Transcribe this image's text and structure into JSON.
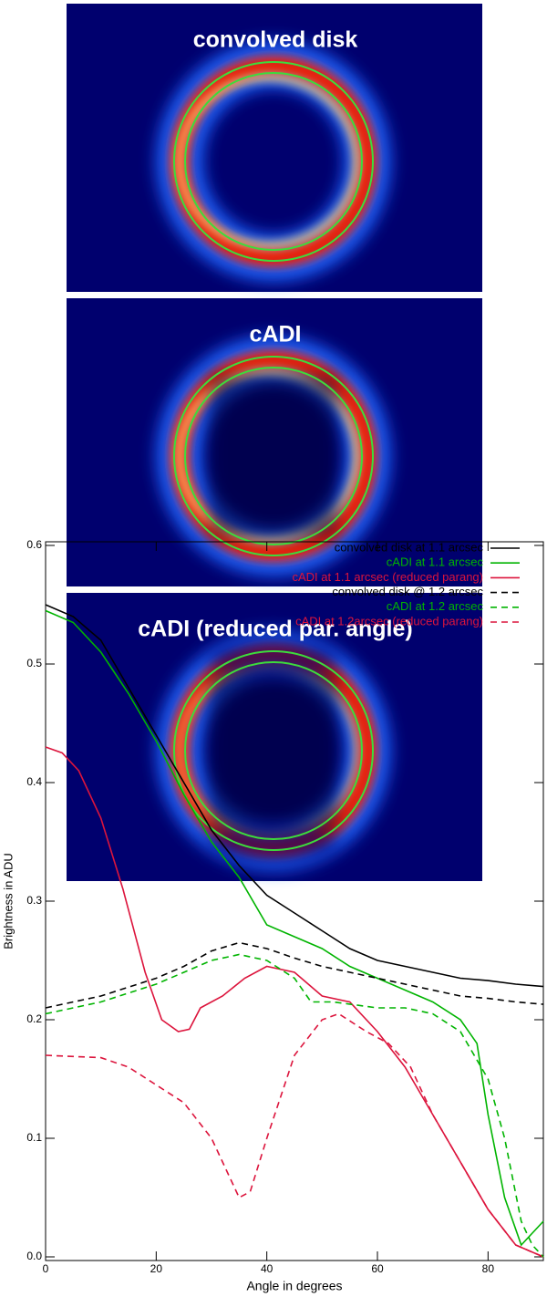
{
  "panels": [
    {
      "title": "convolved disk"
    },
    {
      "title": "cADI"
    },
    {
      "title": "cADI (reduced par. angle)"
    }
  ],
  "chart_data": {
    "type": "line",
    "xlabel": "Angle in degrees",
    "ylabel": "Brightness in ADU",
    "xlim": [
      0,
      90
    ],
    "ylim": [
      0,
      0.6
    ],
    "xticks": [
      0,
      20,
      40,
      60,
      80
    ],
    "yticks": [
      {
        "value": 0,
        "label": "0.0"
      },
      0.1,
      0.2,
      0.3,
      0.4,
      0.5,
      0.6
    ],
    "legend": "upper right",
    "series": [
      {
        "name": "convolved disk at 1.1 arcsec",
        "color": "#000000",
        "dashed": false,
        "x": [
          0,
          5,
          10,
          15,
          20,
          25,
          30,
          35,
          40,
          45,
          50,
          55,
          60,
          65,
          70,
          75,
          80,
          85,
          90
        ],
        "values": [
          0.55,
          0.54,
          0.52,
          0.48,
          0.44,
          0.4,
          0.36,
          0.33,
          0.305,
          0.29,
          0.275,
          0.26,
          0.25,
          0.245,
          0.24,
          0.235,
          0.233,
          0.23,
          0.228
        ]
      },
      {
        "name": "cADI at 1.1 arcsec",
        "color": "#00b400",
        "dashed": false,
        "x": [
          0,
          5,
          10,
          15,
          20,
          25,
          30,
          35,
          40,
          45,
          50,
          55,
          60,
          65,
          70,
          75,
          78,
          80,
          83,
          86,
          88,
          90
        ],
        "values": [
          0.545,
          0.535,
          0.51,
          0.475,
          0.435,
          0.39,
          0.35,
          0.32,
          0.28,
          0.27,
          0.26,
          0.245,
          0.235,
          0.225,
          0.215,
          0.2,
          0.18,
          0.12,
          0.05,
          0.01,
          0.02,
          0.03
        ]
      },
      {
        "name": "cADI at 1.1 arcsec (reduced parang)",
        "color": "#dc143c",
        "dashed": false,
        "x": [
          0,
          3,
          6,
          10,
          14,
          18,
          21,
          24,
          26,
          28,
          32,
          36,
          40,
          45,
          50,
          55,
          60,
          65,
          70,
          75,
          80,
          85,
          90
        ],
        "values": [
          0.43,
          0.425,
          0.41,
          0.37,
          0.31,
          0.24,
          0.2,
          0.19,
          0.192,
          0.21,
          0.22,
          0.235,
          0.245,
          0.24,
          0.22,
          0.215,
          0.19,
          0.16,
          0.12,
          0.08,
          0.04,
          0.01,
          0.0
        ]
      },
      {
        "name": "convolved disk @ 1.2 arcsec",
        "color": "#000000",
        "dashed": true,
        "x": [
          0,
          10,
          20,
          25,
          30,
          35,
          40,
          45,
          50,
          55,
          60,
          65,
          70,
          75,
          80,
          85,
          90
        ],
        "values": [
          0.21,
          0.22,
          0.235,
          0.245,
          0.258,
          0.265,
          0.26,
          0.252,
          0.245,
          0.24,
          0.235,
          0.23,
          0.225,
          0.22,
          0.218,
          0.215,
          0.213
        ]
      },
      {
        "name": "cADI at 1.2 arcsec",
        "color": "#00b400",
        "dashed": true,
        "x": [
          0,
          10,
          20,
          30,
          35,
          40,
          45,
          48,
          52,
          60,
          65,
          70,
          75,
          80,
          83,
          86,
          88,
          90
        ],
        "values": [
          0.205,
          0.215,
          0.23,
          0.25,
          0.255,
          0.25,
          0.235,
          0.215,
          0.215,
          0.21,
          0.21,
          0.205,
          0.19,
          0.15,
          0.1,
          0.03,
          0.01,
          0.0
        ]
      },
      {
        "name": "cADI at 1.2arcsec (reduced parang)",
        "color": "#dc143c",
        "dashed": true,
        "x": [
          0,
          10,
          15,
          20,
          25,
          30,
          33,
          35,
          37,
          40,
          45,
          50,
          53,
          58,
          62,
          66,
          70,
          75,
          80,
          85,
          90
        ],
        "values": [
          0.17,
          0.168,
          0.16,
          0.145,
          0.13,
          0.1,
          0.07,
          0.05,
          0.055,
          0.1,
          0.17,
          0.2,
          0.205,
          0.19,
          0.18,
          0.16,
          0.12,
          0.08,
          0.04,
          0.01,
          0.0
        ]
      }
    ]
  }
}
